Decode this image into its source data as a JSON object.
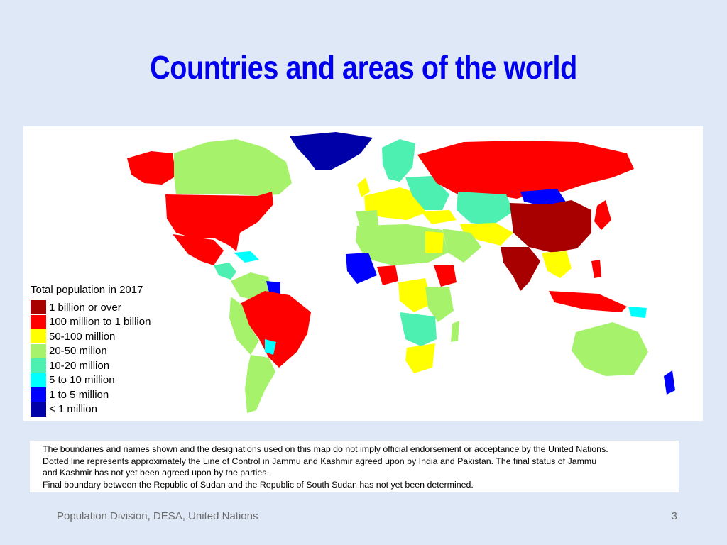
{
  "slide": {
    "title": "Countries and areas of the world",
    "footer_source": "Population Division, DESA, United Nations",
    "page_number": "3"
  },
  "map": {
    "legend": {
      "title": "Total population in 2017",
      "items": [
        {
          "label": "1 billion or over",
          "color": "#a80000"
        },
        {
          "label": "100 million to 1 billion",
          "color": "#ff0000"
        },
        {
          "label": "50-100 million",
          "color": "#ffff00"
        },
        {
          "label": "20-50 milion",
          "color": "#a6f26b"
        },
        {
          "label": "10-20 million",
          "color": "#4df0b0"
        },
        {
          "label": "5 to 10 million",
          "color": "#00ffff"
        },
        {
          "label": "1 to 5 million",
          "color": "#0000ff"
        },
        {
          "label": "< 1 million",
          "color": "#0000a8"
        }
      ]
    }
  },
  "disclaimer": {
    "line1": "The boundaries and names shown and the designations used on this map do not imply official endorsement or acceptance by the United Nations.",
    "line2": "Dotted line represents approximately the Line of Control in Jammu and Kashmir agreed upon by India and Pakistan. The final status of Jammu",
    "line3": "and Kashmir has not yet been agreed upon by the parties.",
    "line4": "Final boundary between the Republic of Sudan and the Republic of South Sudan has not yet been determined."
  }
}
